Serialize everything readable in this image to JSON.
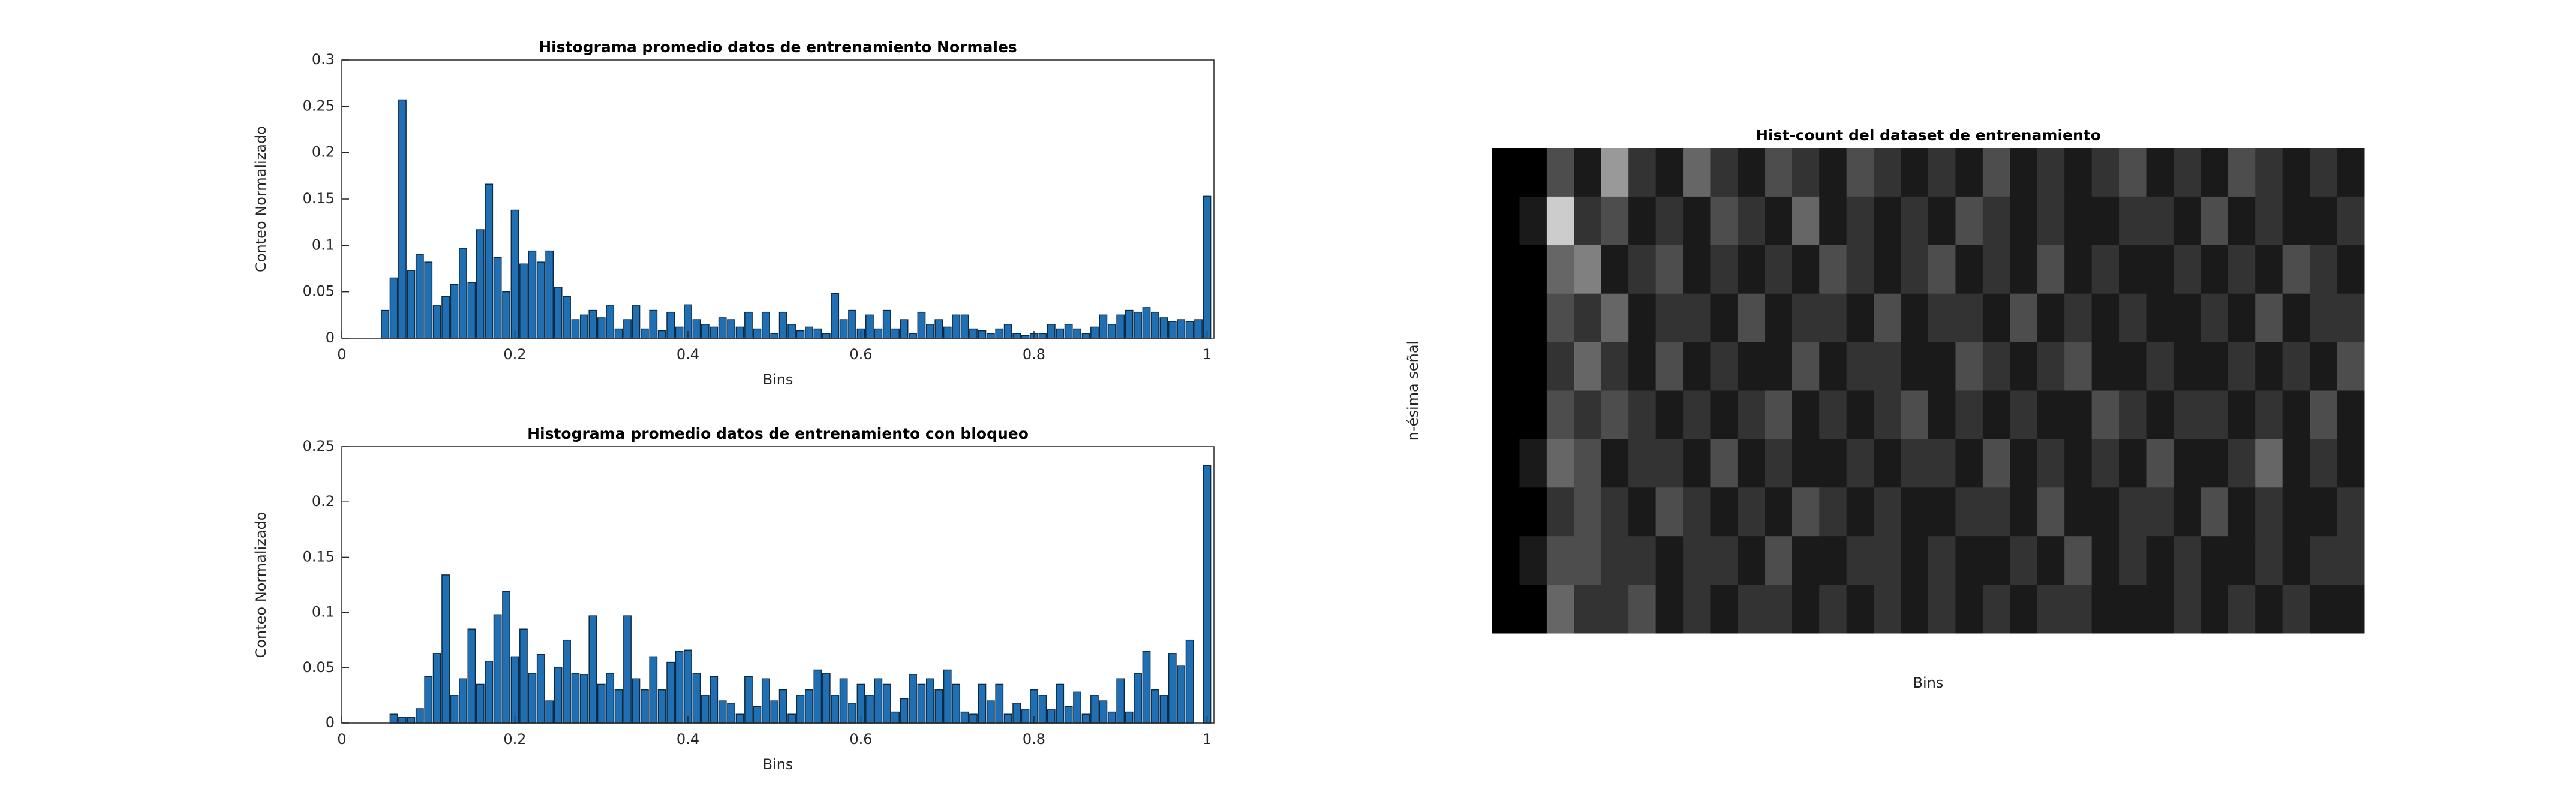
{
  "chart_data": [
    {
      "type": "bar",
      "title": "Histograma promedio datos de entrenamiento Normales",
      "xlabel": "Bins",
      "ylabel": "Conteo Normalizado",
      "color": "#1f6fb2",
      "x": [
        0.05,
        0.06,
        0.07,
        0.08,
        0.09,
        0.1,
        0.11,
        0.12,
        0.13,
        0.14,
        0.15,
        0.16,
        0.17,
        0.18,
        0.19,
        0.2,
        0.21,
        0.22,
        0.23,
        0.24,
        0.25,
        0.26,
        0.27,
        0.28,
        0.29,
        0.3,
        0.31,
        0.32,
        0.33,
        0.34,
        0.35,
        0.36,
        0.37,
        0.38,
        0.39,
        0.4,
        0.41,
        0.42,
        0.43,
        0.44,
        0.45,
        0.46,
        0.47,
        0.48,
        0.49,
        0.5,
        0.51,
        0.52,
        0.53,
        0.54,
        0.55,
        0.56,
        0.57,
        0.58,
        0.59,
        0.6,
        0.61,
        0.62,
        0.63,
        0.64,
        0.65,
        0.66,
        0.67,
        0.68,
        0.69,
        0.7,
        0.71,
        0.72,
        0.73,
        0.74,
        0.75,
        0.76,
        0.77,
        0.78,
        0.79,
        0.8,
        0.81,
        0.82,
        0.83,
        0.84,
        0.85,
        0.86,
        0.87,
        0.88,
        0.89,
        0.9,
        0.91,
        0.92,
        0.93,
        0.94,
        0.95,
        0.96,
        0.97,
        0.98,
        0.99,
        1
      ],
      "values": [
        0.03,
        0.065,
        0.257,
        0.073,
        0.09,
        0.082,
        0.035,
        0.045,
        0.058,
        0.097,
        0.06,
        0.117,
        0.166,
        0.087,
        0.05,
        0.138,
        0.08,
        0.094,
        0.082,
        0.094,
        0.055,
        0.045,
        0.02,
        0.025,
        0.03,
        0.022,
        0.035,
        0.01,
        0.02,
        0.035,
        0.01,
        0.03,
        0.008,
        0.028,
        0.012,
        0.036,
        0.02,
        0.015,
        0.012,
        0.022,
        0.02,
        0.012,
        0.028,
        0.01,
        0.028,
        0.005,
        0.028,
        0.015,
        0.008,
        0.012,
        0.01,
        0.005,
        0.048,
        0.02,
        0.03,
        0.01,
        0.025,
        0.01,
        0.03,
        0.01,
        0.02,
        0.005,
        0.028,
        0.015,
        0.02,
        0.012,
        0.025,
        0.025,
        0.01,
        0.008,
        0.005,
        0.01,
        0.015,
        0.005,
        0.003,
        0.005,
        0.005,
        0.015,
        0.01,
        0.015,
        0.01,
        0.005,
        0.012,
        0.025,
        0.015,
        0.025,
        0.03,
        0.028,
        0.033,
        0.028,
        0.022,
        0.018,
        0.02,
        0.018,
        0.02,
        0.153
      ],
      "xlim": [
        0,
        1.008
      ],
      "xticks": [
        0,
        0.2,
        0.4,
        0.6,
        0.8,
        1
      ],
      "ylim": [
        0,
        0.3
      ],
      "yticks": [
        0,
        0.05,
        0.1,
        0.15,
        0.2,
        0.25,
        0.3
      ]
    },
    {
      "type": "bar",
      "title": "Histograma promedio datos de entrenamiento con bloqueo",
      "xlabel": "Bins",
      "ylabel": "Conteo Normalizado",
      "color": "#1f6fb2",
      "x": [
        0.05,
        0.06,
        0.07,
        0.08,
        0.09,
        0.1,
        0.11,
        0.12,
        0.13,
        0.14,
        0.15,
        0.16,
        0.17,
        0.18,
        0.19,
        0.2,
        0.21,
        0.22,
        0.23,
        0.24,
        0.25,
        0.26,
        0.27,
        0.28,
        0.29,
        0.3,
        0.31,
        0.32,
        0.33,
        0.34,
        0.35,
        0.36,
        0.37,
        0.38,
        0.39,
        0.4,
        0.41,
        0.42,
        0.43,
        0.44,
        0.45,
        0.46,
        0.47,
        0.48,
        0.49,
        0.5,
        0.51,
        0.52,
        0.53,
        0.54,
        0.55,
        0.56,
        0.57,
        0.58,
        0.59,
        0.6,
        0.61,
        0.62,
        0.63,
        0.64,
        0.65,
        0.66,
        0.67,
        0.68,
        0.69,
        0.7,
        0.71,
        0.72,
        0.73,
        0.74,
        0.75,
        0.76,
        0.77,
        0.78,
        0.79,
        0.8,
        0.81,
        0.82,
        0.83,
        0.84,
        0.85,
        0.86,
        0.87,
        0.88,
        0.89,
        0.9,
        0.91,
        0.92,
        0.93,
        0.94,
        0.95,
        0.96,
        0.97,
        0.98,
        0.99,
        1
      ],
      "values": [
        0,
        0.008,
        0.005,
        0.005,
        0.013,
        0.042,
        0.063,
        0.134,
        0.025,
        0.04,
        0.085,
        0.035,
        0.056,
        0.098,
        0.119,
        0.06,
        0.085,
        0.045,
        0.062,
        0.02,
        0.05,
        0.075,
        0.045,
        0.044,
        0.097,
        0.035,
        0.045,
        0.03,
        0.097,
        0.04,
        0.03,
        0.06,
        0.03,
        0.055,
        0.065,
        0.066,
        0.045,
        0.025,
        0.042,
        0.02,
        0.018,
        0.008,
        0.042,
        0.015,
        0.04,
        0.02,
        0.03,
        0.008,
        0.025,
        0.03,
        0.048,
        0.045,
        0.025,
        0.04,
        0.018,
        0.035,
        0.025,
        0.04,
        0.035,
        0.01,
        0.022,
        0.044,
        0.035,
        0.04,
        0.03,
        0.048,
        0.035,
        0.01,
        0.008,
        0.035,
        0.02,
        0.035,
        0.008,
        0.018,
        0.012,
        0.03,
        0.025,
        0.012,
        0.035,
        0.015,
        0.028,
        0.008,
        0.025,
        0.02,
        0.01,
        0.04,
        0.01,
        0.045,
        0.065,
        0.03,
        0.025,
        0.063,
        0.052,
        0.075,
        0,
        0.233
      ],
      "xlim": [
        0,
        1.008
      ],
      "xticks": [
        0,
        0.2,
        0.4,
        0.6,
        0.8,
        1
      ],
      "ylim": [
        0,
        0.25
      ],
      "yticks": [
        0,
        0.05,
        0.1,
        0.15,
        0.2,
        0.25
      ]
    },
    {
      "type": "heatmap",
      "title": "Hist-count del dataset de entrenamiento",
      "xlabel": "Bins",
      "ylabel": "n-ésima señal",
      "values": [
        [
          0,
          0,
          0.3,
          0.1,
          0.6,
          0.2,
          0.1,
          0.4,
          0.2,
          0.1,
          0.3,
          0.2,
          0.1,
          0.3,
          0.2,
          0.1,
          0.2,
          0.1,
          0.3,
          0.1,
          0.2,
          0.1,
          0.2,
          0.3,
          0.1,
          0.2,
          0.1,
          0.3,
          0.2,
          0.1,
          0.2,
          0.1
        ],
        [
          0,
          0.1,
          0.8,
          0.2,
          0.3,
          0.1,
          0.2,
          0.1,
          0.3,
          0.2,
          0.1,
          0.4,
          0.1,
          0.2,
          0.1,
          0.2,
          0.1,
          0.3,
          0.2,
          0.1,
          0.2,
          0.1,
          0.1,
          0.2,
          0.2,
          0.1,
          0.3,
          0.1,
          0.2,
          0.1,
          0.1,
          0.2
        ],
        [
          0,
          0,
          0.4,
          0.5,
          0.1,
          0.2,
          0.3,
          0.1,
          0.2,
          0.1,
          0.2,
          0.1,
          0.3,
          0.2,
          0.1,
          0.2,
          0.3,
          0.1,
          0.2,
          0.1,
          0.3,
          0.1,
          0.2,
          0.1,
          0.1,
          0.2,
          0.1,
          0.2,
          0.1,
          0.3,
          0.2,
          0.1
        ],
        [
          0,
          0,
          0.3,
          0.2,
          0.4,
          0.1,
          0.2,
          0.2,
          0.1,
          0.3,
          0.1,
          0.2,
          0.2,
          0.1,
          0.3,
          0.1,
          0.2,
          0.2,
          0.1,
          0.3,
          0.1,
          0.2,
          0.1,
          0.2,
          0.1,
          0.1,
          0.2,
          0.1,
          0.3,
          0.1,
          0.2,
          0.2
        ],
        [
          0,
          0,
          0.2,
          0.4,
          0.2,
          0.1,
          0.3,
          0.1,
          0.2,
          0.1,
          0.1,
          0.3,
          0.1,
          0.2,
          0.2,
          0.1,
          0.1,
          0.3,
          0.2,
          0.1,
          0.2,
          0.3,
          0.1,
          0.1,
          0.2,
          0.1,
          0.1,
          0.2,
          0.1,
          0.2,
          0.1,
          0.3
        ],
        [
          0,
          0,
          0.3,
          0.2,
          0.3,
          0.2,
          0.1,
          0.2,
          0.1,
          0.2,
          0.3,
          0.1,
          0.2,
          0.1,
          0.2,
          0.3,
          0.1,
          0.2,
          0.1,
          0.2,
          0.1,
          0.1,
          0.3,
          0.2,
          0.1,
          0.2,
          0.2,
          0.1,
          0.2,
          0.1,
          0.3,
          0.1
        ],
        [
          0,
          0.1,
          0.4,
          0.3,
          0.1,
          0.2,
          0.2,
          0.1,
          0.3,
          0.1,
          0.2,
          0.1,
          0.1,
          0.2,
          0.1,
          0.2,
          0.2,
          0.1,
          0.3,
          0.1,
          0.2,
          0.1,
          0.2,
          0.1,
          0.3,
          0.1,
          0.1,
          0.2,
          0.4,
          0.1,
          0.2,
          0.1
        ],
        [
          0,
          0,
          0.2,
          0.3,
          0.2,
          0.1,
          0.3,
          0.2,
          0.1,
          0.2,
          0.1,
          0.3,
          0.2,
          0.1,
          0.2,
          0.1,
          0.1,
          0.2,
          0.2,
          0.1,
          0.3,
          0.1,
          0.1,
          0.2,
          0.2,
          0.1,
          0.3,
          0.1,
          0.2,
          0.1,
          0.1,
          0.2
        ],
        [
          0,
          0.1,
          0.3,
          0.3,
          0.2,
          0.2,
          0.1,
          0.2,
          0.2,
          0.1,
          0.3,
          0.1,
          0.1,
          0.2,
          0.2,
          0.1,
          0.2,
          0.1,
          0.1,
          0.2,
          0.1,
          0.3,
          0.1,
          0.2,
          0.1,
          0.2,
          0.1,
          0.1,
          0.2,
          0.1,
          0.2,
          0.2
        ],
        [
          0,
          0,
          0.4,
          0.2,
          0.2,
          0.3,
          0.1,
          0.2,
          0.1,
          0.2,
          0.2,
          0.1,
          0.2,
          0.1,
          0.2,
          0.1,
          0.2,
          0.1,
          0.2,
          0.1,
          0.2,
          0.2,
          0.1,
          0.1,
          0.1,
          0.2,
          0.1,
          0.2,
          0.1,
          0.2,
          0.1,
          0.1
        ]
      ]
    }
  ]
}
